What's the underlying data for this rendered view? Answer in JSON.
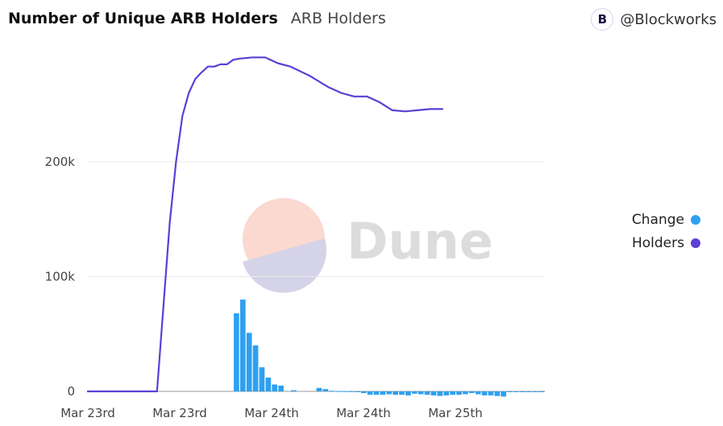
{
  "header": {
    "title": "Number of Unique ARB Holders",
    "subtitle": "ARB Holders"
  },
  "brand": {
    "handle": "@Blockworks",
    "logo_letter": "B",
    "logo_icon": "blockworks-logo-icon"
  },
  "watermark": {
    "text": "Dune"
  },
  "legend": {
    "items": [
      {
        "label": "Change",
        "color": "#2ea0f0"
      },
      {
        "label": "Holders",
        "color": "#5b3fd6"
      }
    ]
  },
  "chart_data": {
    "type": "bar+line",
    "title": "Number of Unique ARB Holders",
    "subtitle": "ARB Holders",
    "x_tick_labels": [
      "Mar 23rd",
      "Mar 23rd",
      "Mar 24th",
      "Mar 24th",
      "Mar 25th"
    ],
    "y_tick_labels": [
      "0",
      "100k",
      "200k"
    ],
    "ylim": [
      0,
      300000
    ],
    "grid": true,
    "legend_position": "right",
    "series": [
      {
        "name": "Change",
        "type": "bar",
        "color": "#2ea0f0",
        "values": [
          0,
          0,
          0,
          0,
          0,
          0,
          0,
          0,
          0,
          0,
          0,
          0,
          0,
          0,
          0,
          0,
          0,
          0,
          0,
          0,
          0,
          0,
          0,
          68000,
          80000,
          51000,
          40000,
          21000,
          12000,
          6000,
          5000,
          0,
          1000,
          0,
          0,
          0,
          3000,
          2000,
          500,
          300,
          200,
          100,
          -500,
          -1500,
          -3000,
          -3000,
          -3000,
          -2500,
          -3000,
          -3000,
          -3500,
          -2000,
          -2500,
          -3000,
          -3500,
          -4000,
          -3500,
          -3000,
          -3000,
          -2500,
          -1500,
          -2500,
          -3500,
          -3500,
          -4000,
          -4500,
          -500,
          -500,
          -200,
          -200,
          -200,
          -100
        ]
      },
      {
        "name": "Holders",
        "type": "line",
        "color": "#5b3fd6",
        "x": [
          0,
          11,
          13,
          14,
          15,
          16,
          17,
          18,
          19,
          20,
          21,
          22,
          23,
          24,
          26,
          28,
          30,
          32,
          35,
          38,
          40,
          42,
          44,
          46,
          48,
          50,
          52,
          54,
          56
        ],
        "values": [
          0,
          0,
          147000,
          200000,
          240000,
          260000,
          272000,
          278000,
          283000,
          283000,
          285000,
          285000,
          289000,
          290000,
          291000,
          291000,
          286000,
          283000,
          275000,
          265000,
          260000,
          257000,
          257000,
          252000,
          245000,
          244000,
          245000,
          246000,
          246000
        ]
      }
    ]
  }
}
